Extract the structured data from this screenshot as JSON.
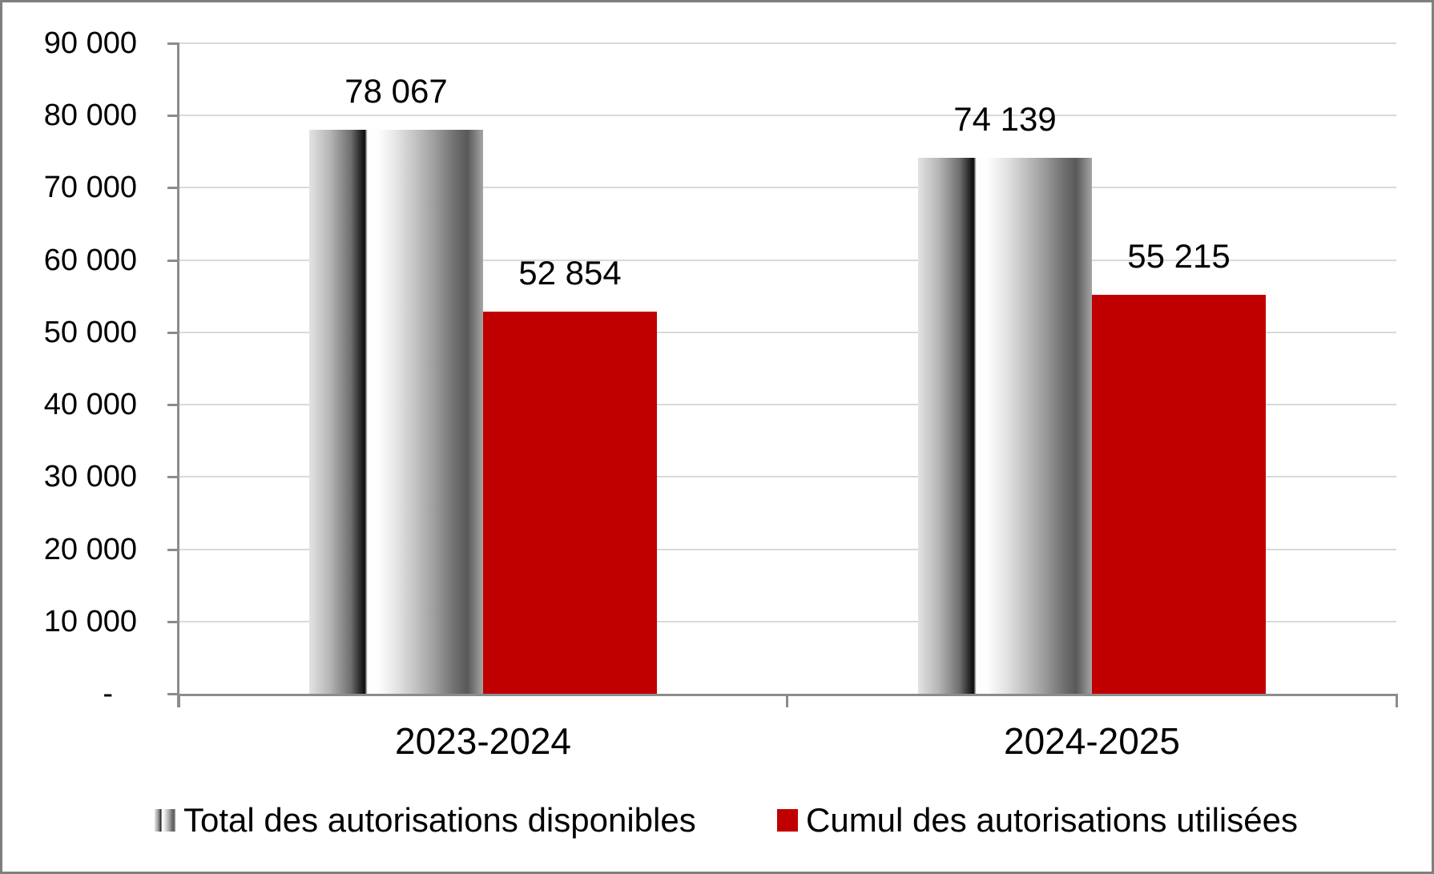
{
  "chart_data": {
    "type": "bar",
    "title": "",
    "categories": [
      "2023-2024",
      "2024-2025"
    ],
    "series": [
      {
        "name": "Total des autorisations disponibles",
        "values": [
          78067,
          74139
        ],
        "value_labels": [
          "78 067",
          "74 139"
        ],
        "fill": "metallic-gray-gradient"
      },
      {
        "name": "Cumul des autorisations utilisées",
        "values": [
          52854,
          55215
        ],
        "value_labels": [
          "52 854",
          "55 215"
        ],
        "fill": "#C00000"
      }
    ],
    "y_axis": {
      "min": 0,
      "max": 90000,
      "step": 10000,
      "tick_labels": [
        "-",
        "10 000",
        "20 000",
        "30 000",
        "40 000",
        "50 000",
        "60 000",
        "70 000",
        "80 000",
        "90 000"
      ]
    },
    "x_axis": {
      "tick_marks": 3
    },
    "grid": true,
    "legend_position": "bottom",
    "colors": {
      "series_2_red": "#C00000",
      "gridline": "#D9D9D9",
      "axis_line": "#8C8C8C",
      "frame_border": "#7F7F7F",
      "text": "#000000"
    }
  }
}
